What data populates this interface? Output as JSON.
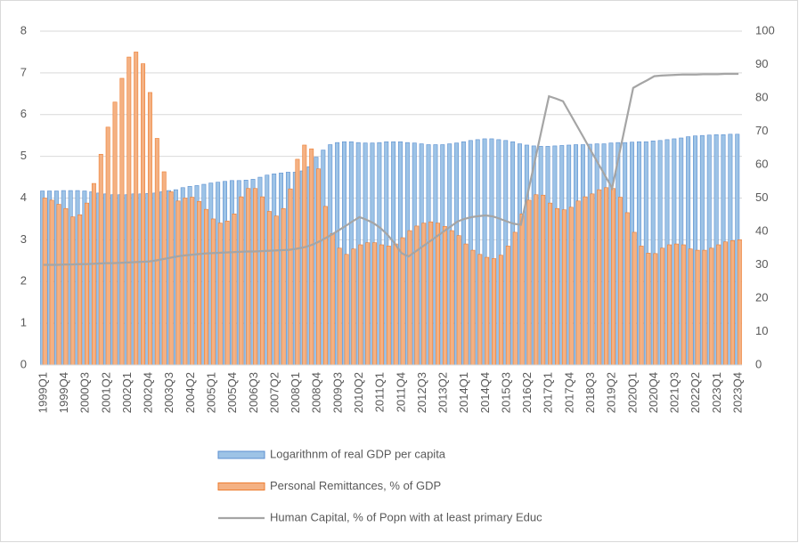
{
  "chart_data": {
    "type": "bar",
    "categories": [
      "1999Q1",
      null,
      null,
      "1999Q4",
      null,
      null,
      "2000Q3",
      null,
      null,
      "2001Q2",
      null,
      null,
      "2002Q1",
      null,
      null,
      "2002Q4",
      null,
      null,
      "2003Q3",
      null,
      null,
      "2004Q2",
      null,
      null,
      "2005Q1",
      null,
      null,
      "2005Q4",
      null,
      null,
      "2006Q3",
      null,
      null,
      "2007Q2",
      null,
      null,
      "2008Q1",
      null,
      null,
      "2008Q4",
      null,
      null,
      "2009Q3",
      null,
      null,
      "2010Q2",
      null,
      null,
      "2011Q1",
      null,
      null,
      "2011Q4",
      null,
      null,
      "2012Q3",
      null,
      null,
      "2013Q2",
      null,
      null,
      "2014Q1",
      null,
      null,
      "2014Q4",
      null,
      null,
      "2015Q3",
      null,
      null,
      "2016Q2",
      null,
      null,
      "2017Q1",
      null,
      null,
      "2017Q4",
      null,
      null,
      "2018Q3",
      null,
      null,
      "2019Q2",
      null,
      null,
      "2020Q1",
      null,
      null,
      "2020Q4",
      null,
      null,
      "2021Q3",
      null,
      null,
      "2022Q2",
      null,
      null,
      "2023Q1",
      null,
      null,
      "2023Q4"
    ],
    "series": [
      {
        "name": "Logarithnm of real GDP per capita",
        "color": "#9dc3e6",
        "stroke": "#5b8fd0",
        "type": "bar",
        "axis": "y",
        "values": [
          4.17,
          4.17,
          4.17,
          4.18,
          4.18,
          4.18,
          4.17,
          4.15,
          4.12,
          4.1,
          4.08,
          4.08,
          4.08,
          4.1,
          4.1,
          4.11,
          4.12,
          4.15,
          4.18,
          4.2,
          4.25,
          4.28,
          4.3,
          4.33,
          4.36,
          4.38,
          4.4,
          4.42,
          4.42,
          4.43,
          4.45,
          4.5,
          4.55,
          4.58,
          4.6,
          4.62,
          4.62,
          4.65,
          4.75,
          4.98,
          5.15,
          5.28,
          5.33,
          5.35,
          5.35,
          5.33,
          5.32,
          5.32,
          5.33,
          5.35,
          5.35,
          5.35,
          5.33,
          5.32,
          5.3,
          5.28,
          5.28,
          5.28,
          5.3,
          5.32,
          5.35,
          5.38,
          5.4,
          5.42,
          5.42,
          5.4,
          5.38,
          5.35,
          5.3,
          5.27,
          5.25,
          5.24,
          5.24,
          5.25,
          5.26,
          5.27,
          5.28,
          5.28,
          5.29,
          5.3,
          5.3,
          5.32,
          5.33,
          5.33,
          5.34,
          5.35,
          5.35,
          5.37,
          5.38,
          5.4,
          5.42,
          5.44,
          5.47,
          5.49,
          5.5,
          5.51,
          5.52,
          5.52,
          5.53,
          5.53
        ]
      },
      {
        "name": "Personal Remittances, % of GDP",
        "color": "#f4b183",
        "stroke": "#ed7d31",
        "type": "bar",
        "axis": "y",
        "values": [
          4.0,
          3.95,
          3.85,
          3.75,
          3.55,
          3.6,
          3.88,
          4.35,
          5.05,
          5.7,
          6.3,
          6.87,
          7.38,
          7.5,
          7.22,
          6.53,
          5.43,
          4.63,
          4.15,
          3.93,
          4.0,
          4.02,
          3.92,
          3.73,
          3.5,
          3.4,
          3.45,
          3.62,
          4.03,
          4.23,
          4.23,
          4.03,
          3.68,
          3.57,
          3.75,
          4.22,
          4.93,
          5.27,
          5.18,
          4.7,
          3.8,
          3.15,
          2.8,
          2.65,
          2.78,
          2.88,
          2.93,
          2.93,
          2.88,
          2.85,
          2.9,
          3.05,
          3.22,
          3.33,
          3.4,
          3.43,
          3.4,
          3.32,
          3.22,
          3.1,
          2.9,
          2.75,
          2.65,
          2.58,
          2.55,
          2.63,
          2.85,
          3.18,
          3.62,
          3.95,
          4.08,
          4.07,
          3.88,
          3.75,
          3.72,
          3.78,
          3.93,
          4.03,
          4.1,
          4.2,
          4.25,
          4.23,
          4.02,
          3.65,
          3.18,
          2.85,
          2.68,
          2.67,
          2.8,
          2.88,
          2.9,
          2.88,
          2.78,
          2.75,
          2.75,
          2.8,
          2.88,
          2.95,
          2.98,
          3.0
        ]
      },
      {
        "name": "Human Capital, % of Popn with at least primary Educ",
        "color": "#a5a5a5",
        "type": "line",
        "axis": "y2",
        "values": [
          30,
          30,
          30,
          30.1,
          30.1,
          30.2,
          30.2,
          30.3,
          30.4,
          30.5,
          30.5,
          30.6,
          30.7,
          30.8,
          30.9,
          31,
          31.3,
          31.7,
          32.1,
          32.5,
          32.8,
          33,
          33.2,
          33.4,
          33.5,
          33.6,
          33.7,
          33.8,
          33.9,
          34,
          34,
          34.1,
          34.2,
          34.3,
          34.4,
          34.5,
          34.8,
          35.2,
          35.8,
          36.7,
          37.8,
          39,
          40.3,
          41.6,
          43,
          44.3,
          43.5,
          42.5,
          41,
          39,
          36.5,
          33.5,
          32.5,
          34,
          35.5,
          37,
          38.5,
          40,
          41.5,
          43,
          43.8,
          44.3,
          44.6,
          44.8,
          44.5,
          43.8,
          43,
          42.3,
          42,
          51.6,
          61.2,
          70.9,
          80.5,
          79.8,
          79,
          75.3,
          71.6,
          67.9,
          64.1,
          60.4,
          56.7,
          53,
          63,
          73,
          83,
          84.2,
          85.3,
          86.5,
          86.7,
          86.8,
          86.9,
          87,
          87,
          87,
          87.1,
          87.1,
          87.1,
          87.2,
          87.2,
          87.2
        ]
      }
    ],
    "ylim": [
      0,
      8
    ],
    "yticks": [
      0,
      1,
      2,
      3,
      4,
      5,
      6,
      7,
      8
    ],
    "y2lim": [
      0,
      100
    ],
    "y2ticks": [
      0,
      10,
      20,
      30,
      40,
      50,
      60,
      70,
      80,
      90,
      100
    ],
    "grid": true,
    "legend": "bottom"
  }
}
